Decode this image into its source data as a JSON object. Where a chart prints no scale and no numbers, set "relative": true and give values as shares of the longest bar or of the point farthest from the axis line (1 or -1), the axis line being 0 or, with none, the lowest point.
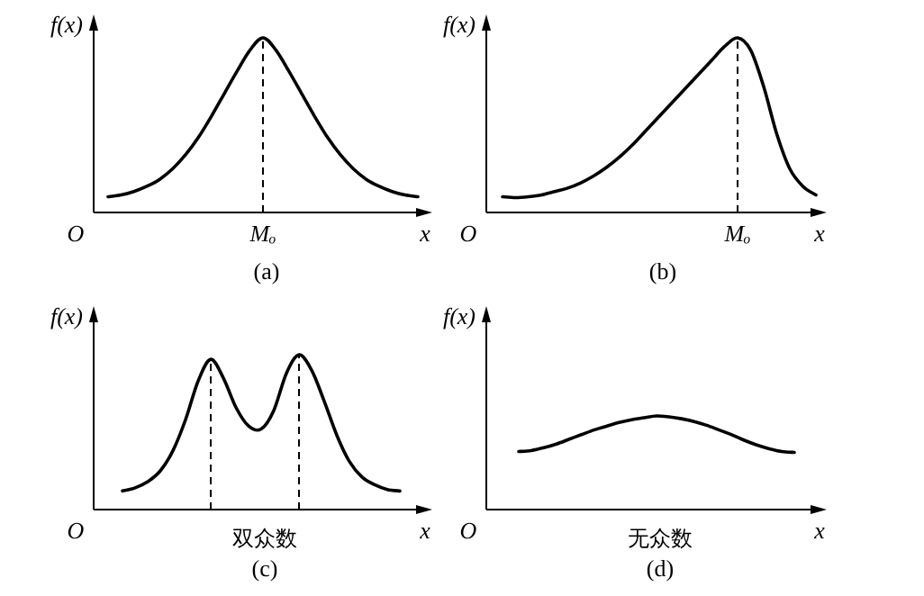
{
  "chart_data": [
    {
      "type": "line",
      "relative": true,
      "title": "(a)",
      "xlabel": "x",
      "ylabel": "f(x)",
      "annotations": [
        "O"
      ],
      "color": "#000000",
      "line_style": "solid",
      "categories": [
        null,
        null,
        null,
        null,
        null,
        null,
        null,
        null,
        null,
        null,
        null,
        null,
        null,
        null,
        null,
        null,
        null,
        null,
        null,
        null,
        null,
        null,
        null,
        null,
        null
      ],
      "values": [
        0.09,
        0.1,
        0.12,
        0.15,
        0.19,
        0.25,
        0.33,
        0.43,
        0.55,
        0.68,
        0.81,
        0.93,
        1.0,
        0.93,
        0.81,
        0.68,
        0.55,
        0.43,
        0.33,
        0.25,
        0.19,
        0.15,
        0.12,
        0.1,
        0.09
      ],
      "ref_lines": [
        {
          "axis": "x",
          "label": "Mₒ",
          "line_style": "dashed"
        }
      ]
    },
    {
      "type": "line",
      "relative": true,
      "title": "(b)",
      "xlabel": "x",
      "ylabel": "f(x)",
      "annotations": [
        "O"
      ],
      "color": "#000000",
      "line_style": "solid",
      "categories": [
        null,
        null,
        null,
        null,
        null,
        null,
        null,
        null,
        null,
        null,
        null,
        null,
        null,
        null,
        null,
        null,
        null,
        null,
        null,
        null,
        null,
        null,
        null,
        null,
        null
      ],
      "values": [
        0.09,
        0.085,
        0.09,
        0.1,
        0.12,
        0.14,
        0.17,
        0.21,
        0.26,
        0.32,
        0.39,
        0.47,
        0.55,
        0.63,
        0.71,
        0.79,
        0.87,
        0.95,
        1.0,
        0.93,
        0.72,
        0.45,
        0.25,
        0.15,
        0.1
      ],
      "ref_lines": [
        {
          "axis": "x",
          "label": "Mₒ",
          "line_style": "dashed"
        }
      ]
    },
    {
      "type": "line",
      "relative": true,
      "title": "(c)",
      "xlabel": "x",
      "ylabel": "f(x)",
      "annotations": [
        "O",
        "双众数"
      ],
      "color": "#000000",
      "line_style": "solid",
      "categories": [
        null,
        null,
        null,
        null,
        null,
        null,
        null,
        null,
        null,
        null,
        null,
        null,
        null,
        null,
        null,
        null,
        null,
        null,
        null,
        null,
        null,
        null,
        null
      ],
      "values": [
        0.12,
        0.14,
        0.18,
        0.25,
        0.38,
        0.58,
        0.83,
        0.97,
        0.85,
        0.66,
        0.54,
        0.52,
        0.64,
        0.88,
        1.0,
        0.9,
        0.7,
        0.48,
        0.31,
        0.21,
        0.16,
        0.13,
        0.12
      ],
      "ref_lines": [
        {
          "axis": "x",
          "line_style": "dashed"
        },
        {
          "axis": "x",
          "line_style": "dashed"
        }
      ]
    },
    {
      "type": "line",
      "relative": true,
      "title": "(d)",
      "xlabel": "x",
      "ylabel": "f(x)",
      "annotations": [
        "O",
        "无众数"
      ],
      "color": "#000000",
      "line_style": "solid",
      "categories": [
        null,
        null,
        null,
        null,
        null,
        null,
        null,
        null,
        null,
        null,
        null,
        null,
        null,
        null,
        null,
        null,
        null,
        null,
        null,
        null,
        null,
        null,
        null
      ],
      "values": [
        0.62,
        0.63,
        0.66,
        0.7,
        0.75,
        0.8,
        0.85,
        0.89,
        0.93,
        0.96,
        0.98,
        1.0,
        0.99,
        0.97,
        0.94,
        0.9,
        0.85,
        0.8,
        0.74,
        0.69,
        0.65,
        0.62,
        0.61
      ]
    }
  ]
}
